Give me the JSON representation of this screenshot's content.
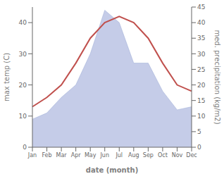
{
  "chart_data": {
    "type": "line",
    "categories": [
      "Jan",
      "Feb",
      "Mar",
      "Apr",
      "May",
      "Jun",
      "Jul",
      "Aug",
      "Sep",
      "Oct",
      "Nov",
      "Dec"
    ],
    "xlabel": "date (month)",
    "ylabel": "max temp (C)",
    "y2label": "med. precipitation (kg/m2)",
    "ylim": [
      0,
      45
    ],
    "yticks": [
      0,
      10,
      20,
      30,
      40
    ],
    "y2lim": [
      0,
      45
    ],
    "y2ticks": [
      0,
      5,
      10,
      15,
      20,
      25,
      30,
      35,
      40,
      45
    ],
    "grid": false,
    "series": [
      {
        "type": "area",
        "axis": "y2",
        "color": "#c5cce8",
        "values": [
          9,
          11,
          16,
          20,
          30,
          44,
          40,
          27,
          27,
          18,
          12,
          13
        ]
      },
      {
        "color": "#c0504d",
        "values": [
          13,
          16,
          20,
          27,
          35,
          40,
          42,
          40,
          35,
          27,
          20,
          18
        ]
      }
    ]
  }
}
